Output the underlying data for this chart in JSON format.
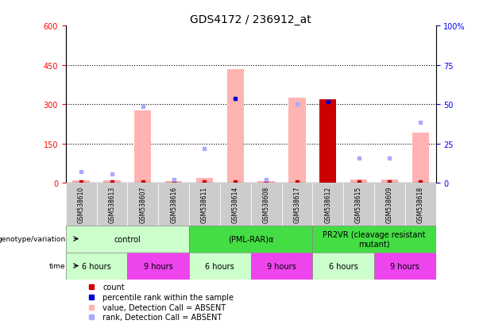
{
  "title": "GDS4172 / 236912_at",
  "samples": [
    "GSM538610",
    "GSM538613",
    "GSM538607",
    "GSM538616",
    "GSM538611",
    "GSM538614",
    "GSM538608",
    "GSM538617",
    "GSM538612",
    "GSM538615",
    "GSM538609",
    "GSM538618"
  ],
  "bar_values": [
    10,
    10,
    278,
    8,
    20,
    435,
    8,
    325,
    318,
    12,
    12,
    192
  ],
  "bar_colors": [
    "#ffb3b3",
    "#ffb3b3",
    "#ffb3b3",
    "#ffb3b3",
    "#ffb3b3",
    "#ffb3b3",
    "#ffb3b3",
    "#ffb3b3",
    "#cc0000",
    "#ffb3b3",
    "#ffb3b3",
    "#ffb3b3"
  ],
  "rank_values": [
    7.5,
    5.8,
    48.5,
    2.0,
    21.7,
    53.5,
    2.0,
    50.0,
    51.8,
    15.8,
    15.8,
    38.3
  ],
  "rank_colors": [
    "#aaaaff",
    "#aaaaff",
    "#aaaaff",
    "#aaaaff",
    "#aaaaff",
    "#0000cc",
    "#aaaaff",
    "#aaaaff",
    "#0000cc",
    "#aaaaff",
    "#aaaaff",
    "#aaaaff"
  ],
  "count_dot_color": "#cc0000",
  "ylim_left": [
    0,
    600
  ],
  "ylim_right": [
    0,
    100
  ],
  "yticks_left": [
    0,
    150,
    300,
    450,
    600
  ],
  "ytick_labels_left": [
    "0",
    "150",
    "300",
    "450",
    "600"
  ],
  "yticks_right": [
    0,
    25,
    50,
    75,
    100
  ],
  "ytick_labels_right": [
    "0",
    "25",
    "50",
    "75",
    "100%"
  ],
  "dotted_lines": [
    150,
    300,
    450
  ],
  "genotype_groups": [
    {
      "label": "control",
      "start": 0,
      "end": 4,
      "color": "#ccffcc"
    },
    {
      "label": "(PML-RAR)α",
      "start": 4,
      "end": 8,
      "color": "#44dd44"
    },
    {
      "label": "PR2VR (cleavage resistant\nmutant)",
      "start": 8,
      "end": 12,
      "color": "#44dd44"
    }
  ],
  "time_groups": [
    {
      "label": "6 hours",
      "start": 0,
      "end": 2,
      "color": "#ccffcc"
    },
    {
      "label": "9 hours",
      "start": 2,
      "end": 4,
      "color": "#ee44ee"
    },
    {
      "label": "6 hours",
      "start": 4,
      "end": 6,
      "color": "#ccffcc"
    },
    {
      "label": "9 hours",
      "start": 6,
      "end": 8,
      "color": "#ee44ee"
    },
    {
      "label": "6 hours",
      "start": 8,
      "end": 10,
      "color": "#ccffcc"
    },
    {
      "label": "9 hours",
      "start": 10,
      "end": 12,
      "color": "#ee44ee"
    }
  ],
  "legend": [
    {
      "label": "count",
      "color": "#cc0000"
    },
    {
      "label": "percentile rank within the sample",
      "color": "#0000cc"
    },
    {
      "label": "value, Detection Call = ABSENT",
      "color": "#ffb3b3"
    },
    {
      "label": "rank, Detection Call = ABSENT",
      "color": "#aaaaff"
    }
  ],
  "sample_col_color": "#cccccc",
  "left_label_color": "#000000",
  "fig_width": 6.13,
  "fig_height": 4.14,
  "dpi": 100
}
